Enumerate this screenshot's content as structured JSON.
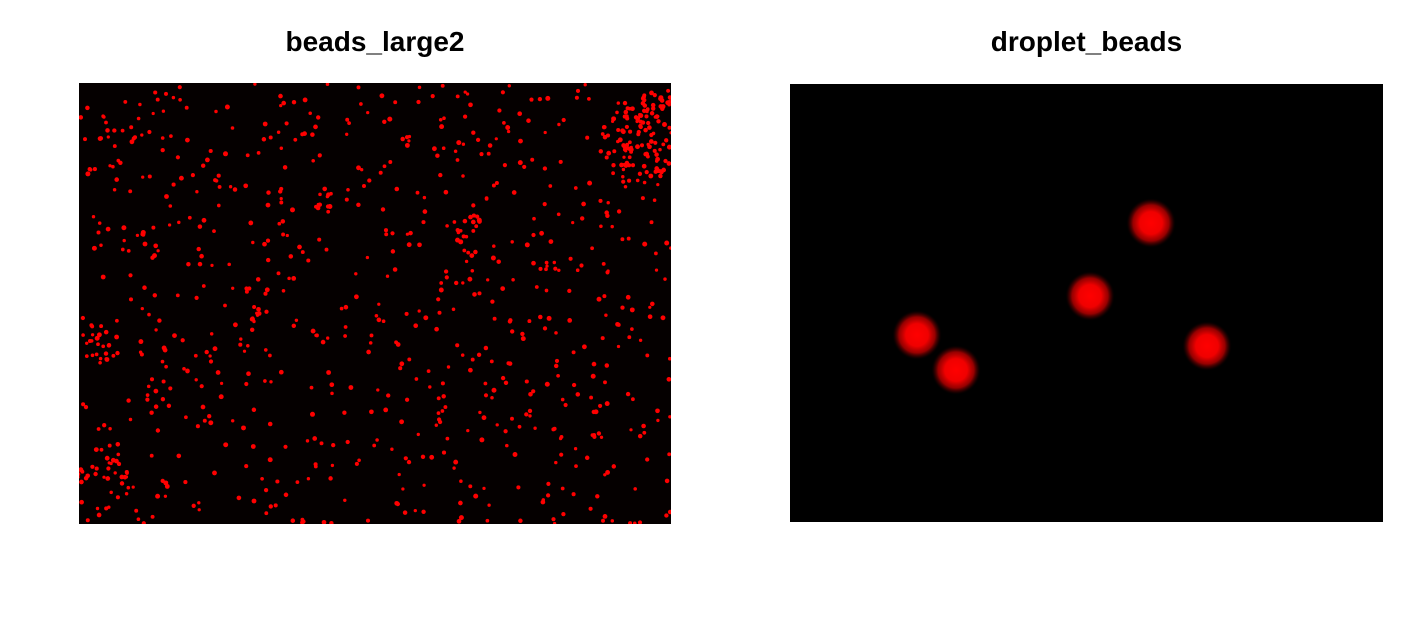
{
  "panels": [
    {
      "title": "beads_large2",
      "background_color": "#050000",
      "bead_color": "#ff0000",
      "content": "many small sharp red beads on dark background"
    },
    {
      "title": "droplet_beads",
      "background_color": "#000000",
      "bead_color": "#ff0000",
      "content": "five large blurred red droplets on black background"
    }
  ]
}
